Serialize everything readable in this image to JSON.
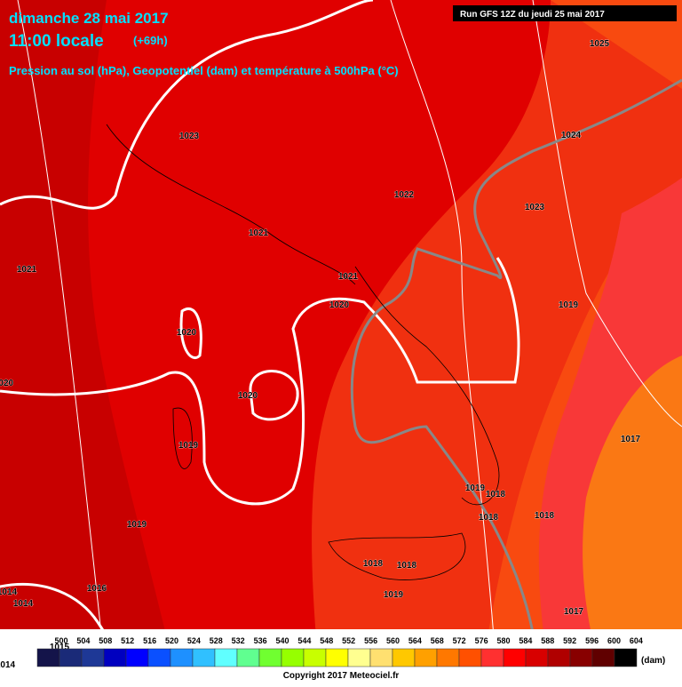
{
  "header": {
    "date": "dimanche 28 mai 2017",
    "time": "11:00 locale",
    "offset": "(+69h)",
    "subtitle": "Pression au sol (hPa), Geopotentiel (dam) et température à 500hPa (°C)",
    "run": "Run GFS 12Z du jeudi 25 mai 2017"
  },
  "isobar_labels": [
    1025,
    1024,
    1023,
    1023,
    1022,
    1021,
    1021,
    1021,
    1020,
    1020,
    1020,
    1020,
    1019,
    1019,
    1019,
    1019,
    1018,
    1018,
    1018,
    1018,
    1018,
    1019,
    1017,
    1017,
    1016,
    1014,
    1014,
    1014,
    1015
  ],
  "scale": {
    "values": [
      500,
      504,
      508,
      512,
      516,
      520,
      524,
      528,
      532,
      536,
      540,
      544,
      548,
      552,
      556,
      560,
      564,
      568,
      572,
      576,
      580,
      584,
      588,
      592,
      596,
      600,
      604
    ],
    "colors": [
      "#14144a",
      "#1a2a78",
      "#1e3896",
      "#0000c0",
      "#0000ff",
      "#0a50ff",
      "#1e90ff",
      "#30c0ff",
      "#60ffff",
      "#60ff90",
      "#70ff30",
      "#96ff00",
      "#c8ff00",
      "#ffff00",
      "#ffff90",
      "#ffe070",
      "#ffc800",
      "#ffa000",
      "#ff7800",
      "#ff5000",
      "#ff3030",
      "#ff0000",
      "#d80000",
      "#b00000",
      "#880000",
      "#600000",
      "#000000"
    ],
    "unit": "(dam)"
  },
  "copyright": "Copyright 2017 Meteociel.fr"
}
